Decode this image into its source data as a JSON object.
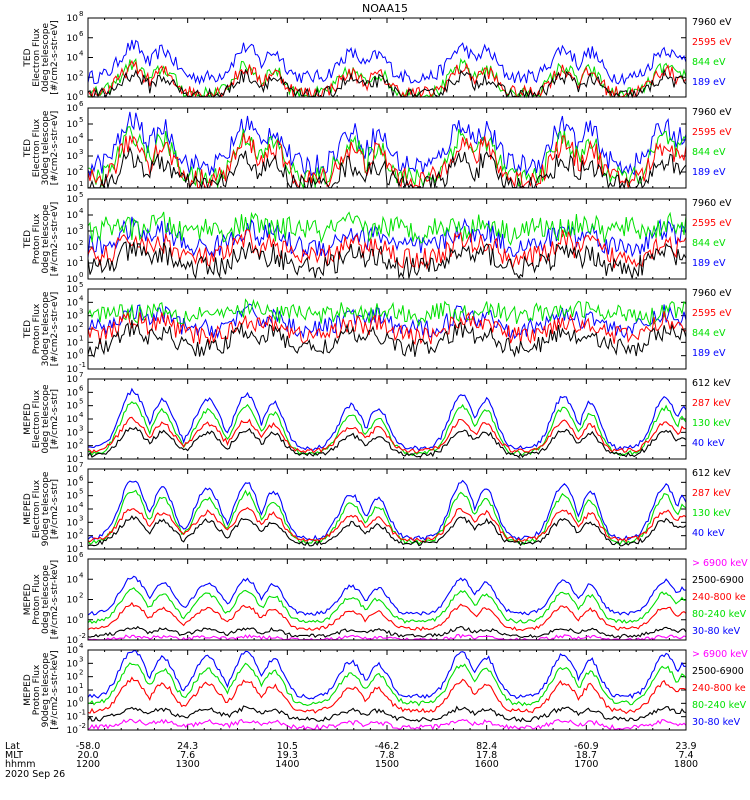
{
  "title": "NOAA15",
  "colors": {
    "blue": "#0000ff",
    "red": "#ff0000",
    "green": "#00e000",
    "black": "#000000",
    "magenta": "#ff00ff"
  },
  "chart_data": [
    {
      "type": "scatter",
      "ylabel_lines": [
        "TED",
        "Electron Flux",
        "0deg telescope",
        "[#/cm2-s-str-eV]"
      ],
      "log_y": true,
      "y_exponents": [
        0,
        2,
        4,
        6,
        8
      ],
      "legend": [
        {
          "label": "7960 eV",
          "color": "black"
        },
        {
          "label": "2595 eV",
          "color": "red"
        },
        {
          "label": "844 eV",
          "color": "green"
        },
        {
          "label": "189 eV",
          "color": "blue"
        }
      ],
      "series": [
        {
          "color": "blue",
          "base": 2.0,
          "amp": 3.2
        },
        {
          "color": "green",
          "base": 0.3,
          "amp": 3.0
        },
        {
          "color": "red",
          "base": 0.4,
          "amp": 2.6
        },
        {
          "color": "black",
          "base": 0.1,
          "amp": 2.2
        }
      ]
    },
    {
      "type": "scatter",
      "ylabel_lines": [
        "TED",
        "Electron Flux",
        "30deg telescope",
        "[#/cm2-s-str-eV]"
      ],
      "log_y": true,
      "y_exponents": [
        1,
        2,
        3,
        4,
        5,
        6
      ],
      "legend": [
        {
          "label": "7960 eV",
          "color": "black"
        },
        {
          "label": "2595 eV",
          "color": "red"
        },
        {
          "label": "844 eV",
          "color": "green"
        },
        {
          "label": "189 eV",
          "color": "blue"
        }
      ],
      "series": [
        {
          "color": "blue",
          "base": 2.4,
          "amp": 2.8
        },
        {
          "color": "green",
          "base": 1.6,
          "amp": 2.8
        },
        {
          "color": "red",
          "base": 1.5,
          "amp": 2.5
        },
        {
          "color": "black",
          "base": 1.1,
          "amp": 1.8
        }
      ]
    },
    {
      "type": "scatter",
      "ylabel_lines": [
        "TED",
        "Proton Flux",
        "0deg telescope",
        "[#/cm2-s-str-eV]"
      ],
      "log_y": true,
      "y_exponents": [
        0,
        1,
        2,
        3,
        4,
        5
      ],
      "legend": [
        {
          "label": "7960 eV",
          "color": "black"
        },
        {
          "label": "2595 eV",
          "color": "red"
        },
        {
          "label": "844 eV",
          "color": "green"
        },
        {
          "label": "189 eV",
          "color": "blue"
        }
      ],
      "series": [
        {
          "color": "blue",
          "base": 2.0,
          "amp": 1.2
        },
        {
          "color": "green",
          "base": 2.6,
          "amp": 1.0
        },
        {
          "color": "red",
          "base": 1.3,
          "amp": 1.2
        },
        {
          "color": "black",
          "base": 0.7,
          "amp": 1.1
        }
      ]
    },
    {
      "type": "scatter",
      "ylabel_lines": [
        "TED",
        "Proton Flux",
        "30deg telescope",
        "[#/cm2-s-str-eV]"
      ],
      "log_y": true,
      "y_exponents": [
        -1,
        0,
        1,
        2,
        3,
        4,
        5
      ],
      "legend": [
        {
          "label": "7960 eV",
          "color": "black"
        },
        {
          "label": "2595 eV",
          "color": "red"
        },
        {
          "label": "844 eV",
          "color": "green"
        },
        {
          "label": "189 eV",
          "color": "blue"
        }
      ],
      "series": [
        {
          "color": "blue",
          "base": 2.0,
          "amp": 1.3
        },
        {
          "color": "green",
          "base": 2.6,
          "amp": 1.1
        },
        {
          "color": "red",
          "base": 1.5,
          "amp": 1.3
        },
        {
          "color": "black",
          "base": 0.6,
          "amp": 1.4
        }
      ]
    },
    {
      "type": "line",
      "ylabel_lines": [
        "MEPED",
        "Electron Flux",
        "0deg telescope",
        "[#/cm2-s-str]"
      ],
      "log_y": true,
      "y_exponents": [
        1,
        2,
        3,
        4,
        5,
        6,
        7
      ],
      "legend": [
        {
          "label": "612 keV",
          "color": "black"
        },
        {
          "label": "287 keV",
          "color": "red"
        },
        {
          "label": "130 keV",
          "color": "green"
        },
        {
          "label": "40 keV",
          "color": "blue"
        }
      ],
      "series": [
        {
          "color": "blue",
          "base": 1.8,
          "amp": 4.3
        },
        {
          "color": "green",
          "base": 1.4,
          "amp": 3.8
        },
        {
          "color": "red",
          "base": 1.6,
          "amp": 2.4
        },
        {
          "color": "black",
          "base": 1.3,
          "amp": 2.0
        }
      ]
    },
    {
      "type": "line",
      "ylabel_lines": [
        "MEPED",
        "Electron Flux",
        "90deg telescope",
        "[#/cm2-s-str]"
      ],
      "log_y": true,
      "y_exponents": [
        1,
        2,
        3,
        4,
        5,
        6,
        7
      ],
      "legend": [
        {
          "label": "612 keV",
          "color": "black"
        },
        {
          "label": "287 keV",
          "color": "red"
        },
        {
          "label": "130 keV",
          "color": "green"
        },
        {
          "label": "40 keV",
          "color": "blue"
        }
      ],
      "series": [
        {
          "color": "blue",
          "base": 1.8,
          "amp": 4.4
        },
        {
          "color": "green",
          "base": 1.5,
          "amp": 3.9
        },
        {
          "color": "red",
          "base": 1.7,
          "amp": 2.4
        },
        {
          "color": "black",
          "base": 1.4,
          "amp": 2.0
        }
      ]
    },
    {
      "type": "line",
      "ylabel_lines": [
        "MEPED",
        "Proton Flux",
        "0deg telescope",
        "[#/cm2-s-str-keV]"
      ],
      "log_y": true,
      "y_exponents": [
        -2,
        0,
        2,
        4,
        6
      ],
      "legend": [
        {
          "label": "> 6900 keV",
          "color": "magenta"
        },
        {
          "label": "2500-6900",
          "color": "black"
        },
        {
          "label": "240-800 ke",
          "color": "red"
        },
        {
          "label": "80-240 keV",
          "color": "green"
        },
        {
          "label": "30-80 keV",
          "color": "blue"
        }
      ],
      "series": [
        {
          "color": "blue",
          "base": 0.6,
          "amp": 3.6
        },
        {
          "color": "green",
          "base": -0.2,
          "amp": 3.2
        },
        {
          "color": "red",
          "base": -0.9,
          "amp": 2.4
        },
        {
          "color": "black",
          "base": -1.6,
          "amp": 0.8
        },
        {
          "color": "magenta",
          "base": -2.0,
          "amp": 0.4
        }
      ]
    },
    {
      "type": "line",
      "ylabel_lines": [
        "MEPED",
        "Proton Flux",
        "90deg telescope",
        "[#/cm2-s-str-keV]"
      ],
      "log_y": true,
      "y_exponents": [
        -2,
        -1,
        0,
        1,
        2,
        3,
        4
      ],
      "legend": [
        {
          "label": "> 6900 keV",
          "color": "magenta"
        },
        {
          "label": "2500-6900",
          "color": "black"
        },
        {
          "label": "240-800 ke",
          "color": "red"
        },
        {
          "label": "80-240 keV",
          "color": "green"
        },
        {
          "label": "30-80 keV",
          "color": "blue"
        }
      ],
      "series": [
        {
          "color": "blue",
          "base": 0.5,
          "amp": 3.5
        },
        {
          "color": "green",
          "base": 0.0,
          "amp": 3.0
        },
        {
          "color": "red",
          "base": -0.6,
          "amp": 2.4
        },
        {
          "color": "black",
          "base": -1.2,
          "amp": 0.9
        },
        {
          "color": "magenta",
          "base": -1.8,
          "amp": 0.5
        }
      ]
    }
  ],
  "x_axis": {
    "row_labels": [
      "Lat",
      "MLT",
      "hhmm"
    ],
    "ticks": [
      {
        "lat": "-58.0",
        "mlt": "20.0",
        "hhmm": "1200"
      },
      {
        "lat": "24.3",
        "mlt": "7.6",
        "hhmm": "1300"
      },
      {
        "lat": "10.5",
        "mlt": "19.3",
        "hhmm": "1400"
      },
      {
        "lat": "-46.2",
        "mlt": "7.8",
        "hhmm": "1500"
      },
      {
        "lat": "82.4",
        "mlt": "17.8",
        "hhmm": "1600"
      },
      {
        "lat": "-60.9",
        "mlt": "18.7",
        "hhmm": "1700"
      },
      {
        "lat": "23.9",
        "mlt": "7.4",
        "hhmm": "1800"
      }
    ],
    "date": "2020 Sep 26"
  },
  "passes": [
    {
      "c": 0.075,
      "w": 0.03,
      "a": 1.0
    },
    {
      "c": 0.125,
      "w": 0.026,
      "a": 0.85
    },
    {
      "c": 0.265,
      "w": 0.028,
      "a": 0.95
    },
    {
      "c": 0.31,
      "w": 0.024,
      "a": 0.8
    },
    {
      "c": 0.44,
      "w": 0.028,
      "a": 0.75
    },
    {
      "c": 0.485,
      "w": 0.024,
      "a": 0.7
    },
    {
      "c": 0.625,
      "w": 0.028,
      "a": 0.95
    },
    {
      "c": 0.665,
      "w": 0.024,
      "a": 0.85
    },
    {
      "c": 0.795,
      "w": 0.028,
      "a": 0.9
    },
    {
      "c": 0.84,
      "w": 0.022,
      "a": 0.8
    },
    {
      "c": 0.965,
      "w": 0.028,
      "a": 0.9
    },
    {
      "c": 0.995,
      "w": 0.018,
      "a": 0.7
    }
  ],
  "saa": {
    "c": 0.2,
    "w": 0.03
  }
}
